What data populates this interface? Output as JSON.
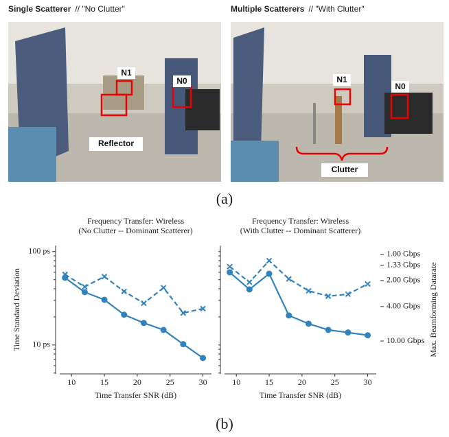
{
  "panel_a": {
    "photos": [
      {
        "heading_bold": "Single Scatterer",
        "heading_rest": "//  \"No Clutter\"",
        "labels": [
          "N1",
          "N0",
          "Reflector"
        ]
      },
      {
        "heading_bold": "Multiple Scatterers",
        "heading_rest": "//  \"With Clutter\"",
        "labels": [
          "N1",
          "N0",
          "Clutter"
        ]
      }
    ],
    "caption": "(a)"
  },
  "chart_data": [
    {
      "type": "line",
      "title": "Frequency Transfer: Wireless",
      "subtitle": "(No Clutter -- Dominant Scatterer)",
      "x_label": "Time Transfer SNR (dB)",
      "y_label": "Time Standard Deviation",
      "x": [
        9,
        12,
        15,
        18,
        21,
        24,
        27,
        30
      ],
      "series": [
        {
          "color": "#3182bd",
          "style": "solid",
          "marker": "circle",
          "values": [
            52.5,
            36.8,
            30.5,
            21.1,
            17.2,
            14.5,
            10.2,
            7.25
          ]
        },
        {
          "color": "#3182bd",
          "style": "dashed",
          "marker": "x",
          "values": [
            57,
            42,
            54,
            37.5,
            28,
            41,
            22,
            24.5
          ]
        }
      ],
      "xlim": [
        8.2,
        31.3
      ],
      "xticks": [
        10,
        15,
        20,
        25,
        30
      ],
      "ylim": [
        4.9,
        116
      ],
      "yscale": "log",
      "yticks": [
        {
          "value": 10,
          "label": "10 ps"
        },
        {
          "value": 100,
          "label": "100 ps"
        }
      ],
      "yminorticks": [
        5,
        6,
        7,
        8,
        9,
        20,
        30,
        40,
        50,
        60,
        70,
        80,
        90
      ]
    },
    {
      "type": "line",
      "title": "Frequency Transfer: Wireless",
      "subtitle": "(With Clutter -- Dominant Scatterer)",
      "x_label": "Time Transfer SNR (dB)",
      "y2_label": "Max. Beamforming Datarate",
      "x": [
        9,
        12,
        15,
        18,
        21,
        24,
        27,
        30
      ],
      "series": [
        {
          "color": "#3182bd",
          "style": "solid",
          "marker": "circle",
          "values": [
            60,
            39.4,
            58,
            20.7,
            16.9,
            14.5,
            13.6,
            12.7
          ]
        },
        {
          "color": "#3182bd",
          "style": "dashed",
          "marker": "x",
          "values": [
            69,
            47,
            80,
            51,
            38,
            33.3,
            35,
            45
          ]
        }
      ],
      "xlim": [
        8.2,
        31.3
      ],
      "xticks": [
        10,
        15,
        20,
        25,
        30
      ],
      "ylim": [
        4.9,
        116
      ],
      "yscale": "log",
      "yminorticks": [
        5,
        6,
        7,
        8,
        9,
        10,
        20,
        30,
        40,
        50,
        60,
        70,
        80,
        90,
        100
      ],
      "y2lim": [
        24,
        0.79
      ],
      "y2scale": "log",
      "y2ticks": [
        {
          "value": 1,
          "label": "1.00 Gbps"
        },
        {
          "value": 1.33,
          "label": "1.33 Gbps"
        },
        {
          "value": 2,
          "label": "2.00 Gbps"
        },
        {
          "value": 4,
          "label": "4.00 Gbps"
        },
        {
          "value": 10,
          "label": "10.00 Gbps"
        }
      ]
    }
  ],
  "caption_b": "(b)"
}
